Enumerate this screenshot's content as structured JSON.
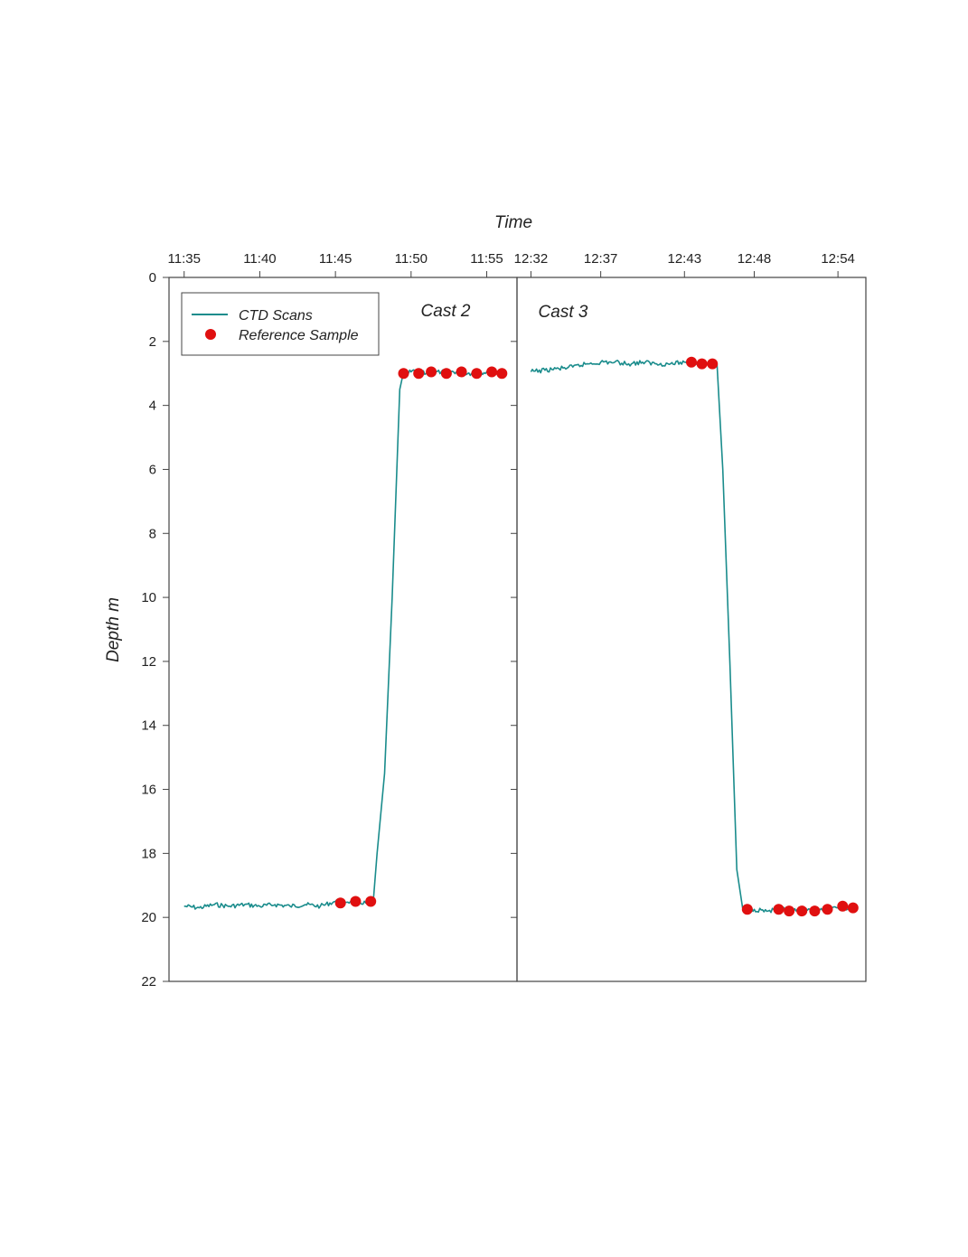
{
  "chart_data": {
    "type": "line",
    "xlabel": "Time",
    "ylabel": "Depth m",
    "y_axis": {
      "range": [
        0,
        22
      ],
      "inverted": true,
      "ticks": [
        "0",
        "2",
        "4",
        "6",
        "8",
        "10",
        "12",
        "14",
        "16",
        "18",
        "20",
        "22"
      ]
    },
    "grid": false,
    "legend": {
      "placement": "top-left",
      "entries": [
        {
          "label": "CTD Scans",
          "marker": "line",
          "color": "#1a8c8c"
        },
        {
          "label": "Reference Sample",
          "marker": "circle",
          "color": "#e01010"
        }
      ]
    },
    "colors": {
      "ctd": "#1a8c8c",
      "reference": "#e01010",
      "axes": "#444444"
    },
    "panels": [
      {
        "label": "Cast 2",
        "x_range": [
          "11:34",
          "11:57"
        ],
        "x_ticks": [
          "11:35",
          "11:40",
          "11:45",
          "11:50",
          "11:55"
        ],
        "series": [
          {
            "name": "CTD Scans",
            "kind": "line",
            "points": [
              [
                "11:35",
                19.65
              ],
              [
                "11:36",
                19.7
              ],
              [
                "11:37",
                19.6
              ],
              [
                "11:38",
                19.65
              ],
              [
                "11:39",
                19.6
              ],
              [
                "11:40",
                19.65
              ],
              [
                "11:41",
                19.6
              ],
              [
                "11:42",
                19.65
              ],
              [
                "11:43",
                19.6
              ],
              [
                "11:44",
                19.65
              ],
              [
                "11:45",
                19.5
              ],
              [
                "11:46",
                19.5
              ],
              [
                "11:47",
                19.55
              ],
              [
                "11:47:30",
                19.5
              ],
              [
                "11:47:45",
                18.0
              ],
              [
                "11:48:15",
                15.5
              ],
              [
                "11:48:45",
                10.0
              ],
              [
                "11:49:15",
                3.5
              ],
              [
                "11:49:30",
                2.95
              ],
              [
                "11:50",
                2.95
              ],
              [
                "11:51",
                3.0
              ],
              [
                "11:52",
                2.95
              ],
              [
                "11:53",
                2.95
              ],
              [
                "11:54",
                3.0
              ],
              [
                "11:55",
                2.95
              ],
              [
                "11:56",
                3.0
              ]
            ]
          },
          {
            "name": "Reference Sample",
            "kind": "scatter",
            "points": [
              [
                "11:45:20",
                19.55
              ],
              [
                "11:46:20",
                19.5
              ],
              [
                "11:47:20",
                19.5
              ],
              [
                "11:49:30",
                3.0
              ],
              [
                "11:50:30",
                3.0
              ],
              [
                "11:51:20",
                2.95
              ],
              [
                "11:52:20",
                3.0
              ],
              [
                "11:53:20",
                2.95
              ],
              [
                "11:54:20",
                3.0
              ],
              [
                "11:55:20",
                2.95
              ],
              [
                "11:56:00",
                3.0
              ]
            ]
          }
        ]
      },
      {
        "label": "Cast 3",
        "x_range": [
          "12:31",
          "12:56"
        ],
        "x_ticks": [
          "12:32",
          "12:37",
          "12:43",
          "12:48",
          "12:54"
        ],
        "series": [
          {
            "name": "CTD Scans",
            "kind": "line",
            "points": [
              [
                "12:32",
                2.95
              ],
              [
                "12:33",
                2.9
              ],
              [
                "12:34",
                2.85
              ],
              [
                "12:35",
                2.8
              ],
              [
                "12:36",
                2.7
              ],
              [
                "12:37",
                2.65
              ],
              [
                "12:38",
                2.65
              ],
              [
                "12:39",
                2.7
              ],
              [
                "12:40",
                2.65
              ],
              [
                "12:41",
                2.7
              ],
              [
                "12:42",
                2.7
              ],
              [
                "12:43",
                2.65
              ],
              [
                "12:44",
                2.7
              ],
              [
                "12:45",
                2.7
              ],
              [
                "12:45:20",
                2.7
              ],
              [
                "12:45:45",
                6.0
              ],
              [
                "12:46:15",
                12.0
              ],
              [
                "12:46:45",
                18.5
              ],
              [
                "12:47:10",
                19.7
              ],
              [
                "12:48",
                19.75
              ],
              [
                "12:49",
                19.8
              ],
              [
                "12:50",
                19.75
              ],
              [
                "12:51",
                19.8
              ],
              [
                "12:52",
                19.75
              ],
              [
                "12:53",
                19.8
              ],
              [
                "12:54",
                19.7
              ],
              [
                "12:55",
                19.75
              ]
            ]
          },
          {
            "name": "Reference Sample",
            "kind": "scatter",
            "points": [
              [
                "12:43:30",
                2.65
              ],
              [
                "12:44:15",
                2.7
              ],
              [
                "12:45:00",
                2.7
              ],
              [
                "12:47:30",
                19.75
              ],
              [
                "12:49:45",
                19.75
              ],
              [
                "12:50:30",
                19.8
              ],
              [
                "12:51:25",
                19.8
              ],
              [
                "12:52:20",
                19.8
              ],
              [
                "12:53:15",
                19.75
              ],
              [
                "12:54:20",
                19.65
              ],
              [
                "12:55:05",
                19.7
              ]
            ]
          }
        ]
      }
    ]
  }
}
